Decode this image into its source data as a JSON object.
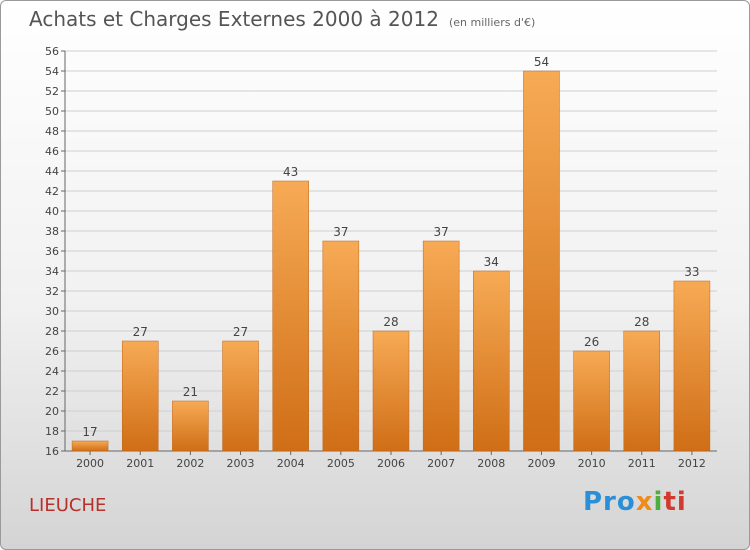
{
  "header": {
    "title": "Achats et Charges Externes 2000 à 2012",
    "subtitle": "(en milliers d'€)"
  },
  "footer": {
    "city": "LIEUCHE",
    "logo": [
      "Pro",
      "x",
      "i",
      "ti"
    ]
  },
  "colors": {
    "bar_top": "#f7aa55",
    "bar_bottom": "#cf6e16",
    "grid": "#cfcfcf",
    "city": "#b8302a"
  },
  "chart_data": {
    "type": "bar",
    "title": "Achats et Charges Externes 2000 à 2012",
    "subtitle": "(en milliers d'€)",
    "categories": [
      "2000",
      "2001",
      "2002",
      "2003",
      "2004",
      "2005",
      "2006",
      "2007",
      "2008",
      "2009",
      "2010",
      "2011",
      "2012"
    ],
    "values": [
      17,
      27,
      21,
      27,
      43,
      37,
      28,
      37,
      34,
      54,
      26,
      28,
      33
    ],
    "ylim": [
      16,
      56
    ],
    "yticks": [
      16,
      18,
      20,
      22,
      24,
      26,
      28,
      30,
      32,
      34,
      36,
      38,
      40,
      42,
      44,
      46,
      48,
      50,
      52,
      54,
      56
    ],
    "grid": true,
    "data_labels": true
  }
}
